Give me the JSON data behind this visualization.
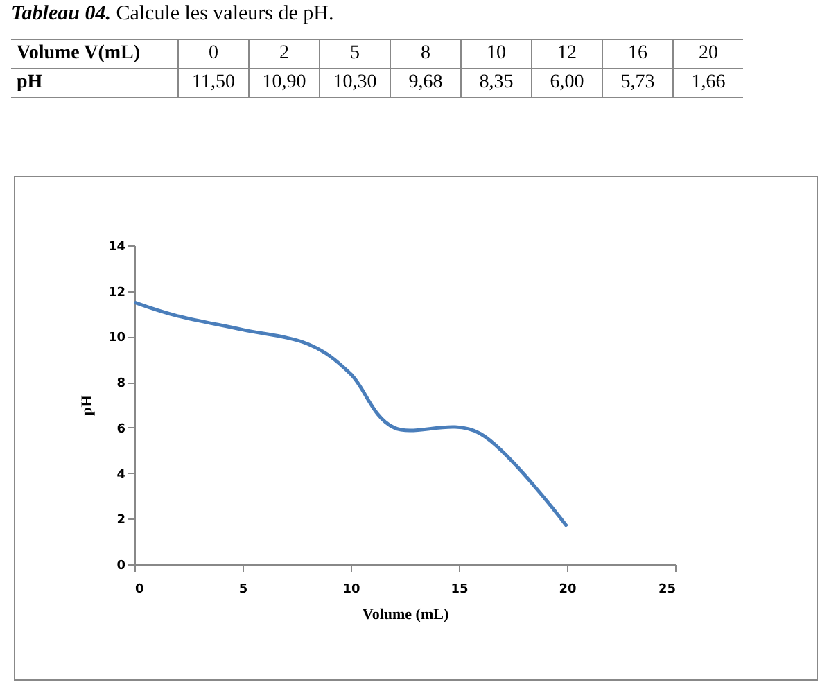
{
  "chart_data": [
    {
      "type": "other",
      "title": "Tableau 04. Calcule les valeurs de pH.",
      "annotations": [
        "Volume V(mL)",
        "0",
        "2",
        "5",
        "8",
        "10",
        "12",
        "16",
        "20",
        "pH",
        "11,50",
        "10,90",
        "10,30",
        "9,68",
        "8,35",
        "6,00",
        "5,73",
        "1,66"
      ]
    },
    {
      "type": "line",
      "xlabel": "Volume (mL)",
      "ylabel": "pH",
      "x": [
        0,
        2,
        5,
        8,
        10,
        12,
        16,
        20
      ],
      "series": [
        {
          "color": "#4a7ebb",
          "values": [
            11.5,
            10.9,
            10.3,
            9.68,
            8.35,
            6.0,
            5.73,
            1.66
          ]
        }
      ],
      "xlim": [
        0,
        25
      ],
      "xticks": [
        0,
        5,
        10,
        15,
        20,
        25
      ],
      "ylim": [
        0,
        14
      ],
      "yticks": [
        0,
        2,
        4,
        6,
        8,
        10,
        12,
        14
      ],
      "grid": false
    }
  ]
}
